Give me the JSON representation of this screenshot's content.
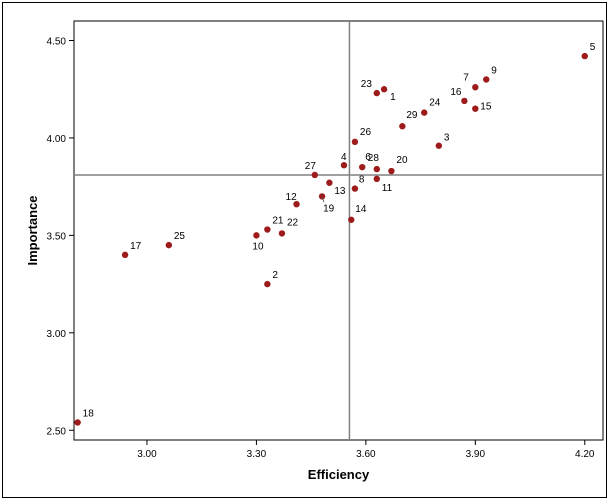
{
  "chart_data": {
    "type": "scatter",
    "title": "",
    "xlabel": "Efficiency",
    "ylabel": "Importance",
    "xlim": [
      2.8,
      4.25
    ],
    "ylim": [
      2.45,
      4.6
    ],
    "xticks": [
      "3.00",
      "3.30",
      "3.60",
      "3.90",
      "4.20"
    ],
    "yticks": [
      "2.50",
      "3.00",
      "3.50",
      "4.00",
      "4.50"
    ],
    "grid": false,
    "reference_lines": {
      "x": 3.555,
      "y": 3.81
    },
    "marker_color": "#9e1b1b",
    "line_color": "#808080",
    "points": [
      {
        "label": "1",
        "x": 3.65,
        "y": 4.25
      },
      {
        "label": "2",
        "x": 3.33,
        "y": 3.25
      },
      {
        "label": "3",
        "x": 3.8,
        "y": 3.96
      },
      {
        "label": "4",
        "x": 3.54,
        "y": 3.86
      },
      {
        "label": "5",
        "x": 4.2,
        "y": 4.42
      },
      {
        "label": "6",
        "x": 3.59,
        "y": 3.85
      },
      {
        "label": "7",
        "x": 3.9,
        "y": 4.26
      },
      {
        "label": "8",
        "x": 3.57,
        "y": 3.74
      },
      {
        "label": "9",
        "x": 3.93,
        "y": 4.3
      },
      {
        "label": "10",
        "x": 3.3,
        "y": 3.5
      },
      {
        "label": "11",
        "x": 3.63,
        "y": 3.79
      },
      {
        "label": "12",
        "x": 3.41,
        "y": 3.66
      },
      {
        "label": "13",
        "x": 3.5,
        "y": 3.77
      },
      {
        "label": "14",
        "x": 3.56,
        "y": 3.58
      },
      {
        "label": "15",
        "x": 3.9,
        "y": 4.15
      },
      {
        "label": "16",
        "x": 3.87,
        "y": 4.19
      },
      {
        "label": "17",
        "x": 2.94,
        "y": 3.4
      },
      {
        "label": "18",
        "x": 2.81,
        "y": 2.54
      },
      {
        "label": "19",
        "x": 3.48,
        "y": 3.7
      },
      {
        "label": "20",
        "x": 3.67,
        "y": 3.83
      },
      {
        "label": "21",
        "x": 3.33,
        "y": 3.53
      },
      {
        "label": "22",
        "x": 3.37,
        "y": 3.51
      },
      {
        "label": "23",
        "x": 3.63,
        "y": 4.23
      },
      {
        "label": "24",
        "x": 3.76,
        "y": 4.13
      },
      {
        "label": "25",
        "x": 3.06,
        "y": 3.45
      },
      {
        "label": "26",
        "x": 3.57,
        "y": 3.98
      },
      {
        "label": "27",
        "x": 3.46,
        "y": 3.81
      },
      {
        "label": "28",
        "x": 3.63,
        "y": 3.84
      },
      {
        "label": "29",
        "x": 3.7,
        "y": 4.06
      }
    ]
  }
}
